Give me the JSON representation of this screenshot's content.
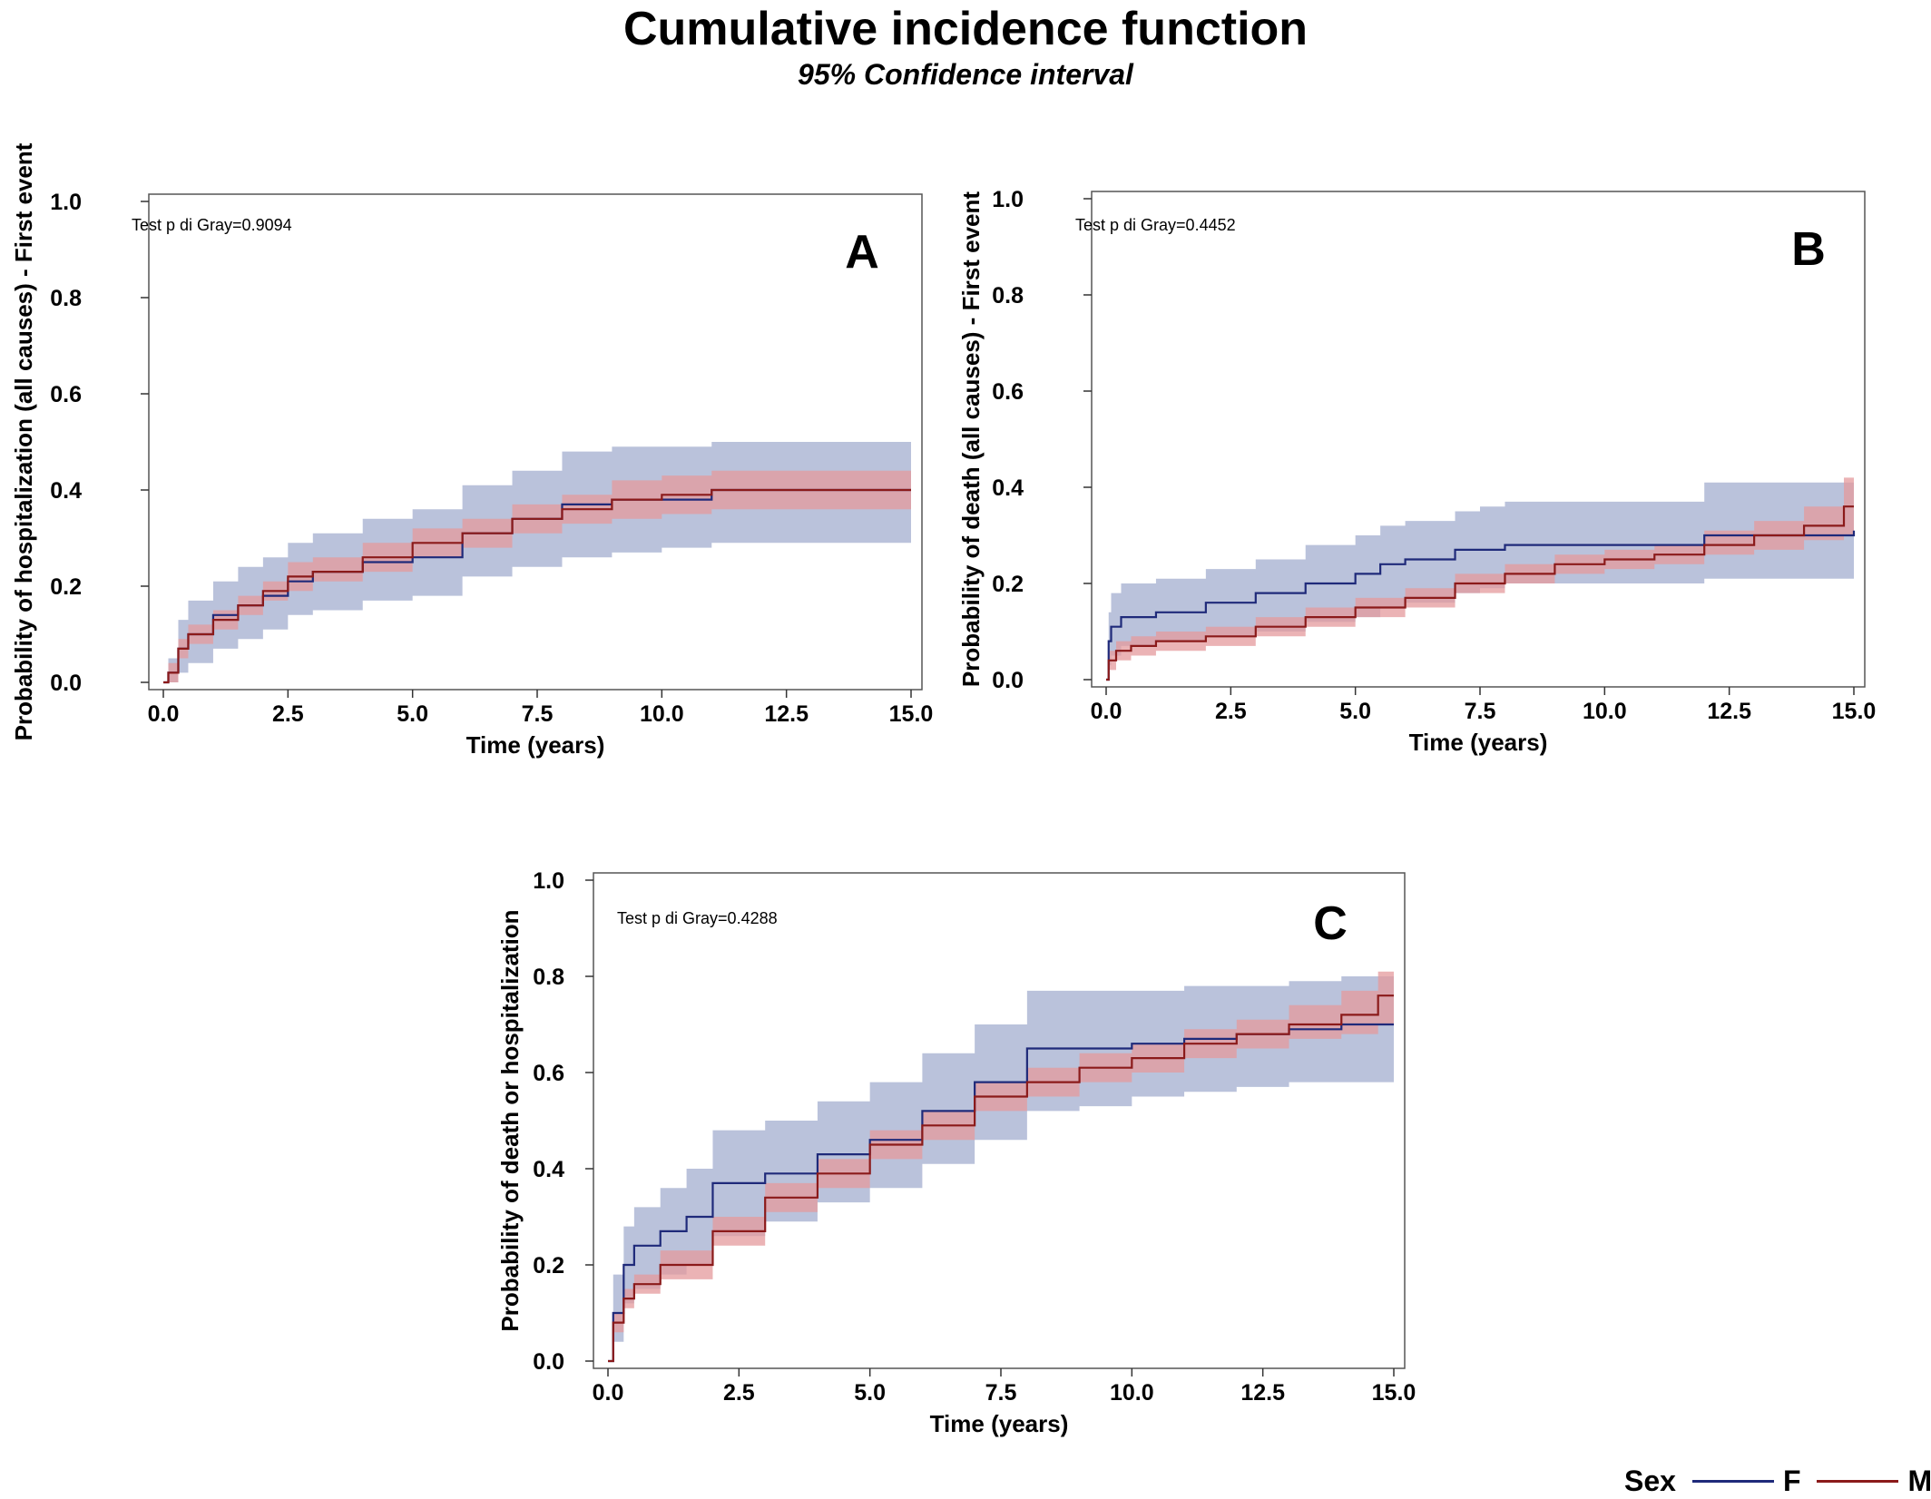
{
  "title": "Cumulative incidence function",
  "subtitle": "95% Confidence interval",
  "legend": {
    "title": "Sex",
    "items": [
      {
        "label": "F",
        "color": "#1f2a7a"
      },
      {
        "label": "M",
        "color": "#8b1a1a"
      }
    ]
  },
  "colors": {
    "F_line": "#1f2a7a",
    "M_line": "#8b1a1a",
    "F_band": "#a9b3d2",
    "M_band": "#e49a9c"
  },
  "chart_data": [
    {
      "type": "line",
      "panel_label": "A",
      "annotation": "Test p di Gray=0.9094",
      "xlabel": "Time (years)",
      "ylabel": "Probability of hospitalization (all causes) - First event",
      "xlim": [
        0,
        15
      ],
      "ylim": [
        0,
        1
      ],
      "xticks": [
        "0.0",
        "2.5",
        "5.0",
        "7.5",
        "10.0",
        "12.5",
        "15.0"
      ],
      "yticks": [
        "0.0",
        "0.2",
        "0.4",
        "0.6",
        "0.8",
        "1.0"
      ],
      "series": [
        {
          "name": "F",
          "x": [
            0.0,
            0.1,
            0.3,
            0.5,
            1.0,
            1.5,
            2.0,
            2.5,
            3.0,
            4.0,
            5.0,
            6.0,
            7.0,
            8.0,
            9.0,
            10.0,
            11.0,
            15.0
          ],
          "y": [
            0.0,
            0.02,
            0.07,
            0.1,
            0.14,
            0.16,
            0.18,
            0.21,
            0.23,
            0.25,
            0.26,
            0.31,
            0.34,
            0.37,
            0.38,
            0.38,
            0.4,
            0.4
          ],
          "lower": [
            0.0,
            0.0,
            0.02,
            0.04,
            0.07,
            0.09,
            0.11,
            0.14,
            0.15,
            0.17,
            0.18,
            0.22,
            0.24,
            0.26,
            0.27,
            0.28,
            0.29,
            0.29
          ],
          "upper": [
            0.0,
            0.05,
            0.13,
            0.17,
            0.21,
            0.24,
            0.26,
            0.29,
            0.31,
            0.34,
            0.36,
            0.41,
            0.44,
            0.48,
            0.49,
            0.49,
            0.5,
            0.5
          ]
        },
        {
          "name": "M",
          "x": [
            0.0,
            0.1,
            0.3,
            0.5,
            1.0,
            1.5,
            2.0,
            2.5,
            3.0,
            4.0,
            5.0,
            6.0,
            7.0,
            8.0,
            9.0,
            10.0,
            11.0,
            15.0
          ],
          "y": [
            0.0,
            0.02,
            0.07,
            0.1,
            0.13,
            0.16,
            0.19,
            0.22,
            0.23,
            0.26,
            0.29,
            0.31,
            0.34,
            0.36,
            0.38,
            0.39,
            0.4,
            0.4
          ],
          "lower": [
            0.0,
            0.0,
            0.05,
            0.08,
            0.11,
            0.14,
            0.17,
            0.19,
            0.21,
            0.23,
            0.26,
            0.28,
            0.31,
            0.33,
            0.34,
            0.35,
            0.36,
            0.36
          ],
          "upper": [
            0.0,
            0.04,
            0.09,
            0.12,
            0.15,
            0.18,
            0.21,
            0.25,
            0.26,
            0.29,
            0.32,
            0.34,
            0.37,
            0.39,
            0.42,
            0.43,
            0.44,
            0.44
          ]
        }
      ]
    },
    {
      "type": "line",
      "panel_label": "B",
      "annotation": "Test p di Gray=0.4452",
      "xlabel": "Time (years)",
      "ylabel": "Probability of death (all causes) - First event",
      "xlim": [
        0,
        15
      ],
      "ylim": [
        0,
        1
      ],
      "xticks": [
        "0.0",
        "2.5",
        "5.0",
        "7.5",
        "10.0",
        "12.5",
        "15.0"
      ],
      "yticks": [
        "0.0",
        "0.2",
        "0.4",
        "0.6",
        "0.8",
        "1.0"
      ],
      "series": [
        {
          "name": "F",
          "x": [
            0.0,
            0.05,
            0.1,
            0.3,
            0.5,
            1.0,
            2.0,
            3.0,
            4.0,
            5.0,
            5.5,
            6.0,
            7.0,
            7.5,
            8.0,
            10.0,
            12.0,
            15.0
          ],
          "y": [
            0.0,
            0.08,
            0.11,
            0.13,
            0.13,
            0.14,
            0.16,
            0.18,
            0.2,
            0.22,
            0.24,
            0.25,
            0.27,
            0.27,
            0.28,
            0.28,
            0.3,
            0.31
          ],
          "lower": [
            0.0,
            0.03,
            0.05,
            0.07,
            0.07,
            0.08,
            0.09,
            0.1,
            0.12,
            0.13,
            0.15,
            0.16,
            0.18,
            0.19,
            0.2,
            0.2,
            0.21,
            0.21
          ],
          "upper": [
            0.0,
            0.14,
            0.18,
            0.2,
            0.2,
            0.21,
            0.23,
            0.25,
            0.28,
            0.3,
            0.32,
            0.33,
            0.35,
            0.36,
            0.37,
            0.37,
            0.41,
            0.41
          ]
        },
        {
          "name": "M",
          "x": [
            0.0,
            0.05,
            0.2,
            0.5,
            1.0,
            2.0,
            3.0,
            4.0,
            5.0,
            6.0,
            7.0,
            8.0,
            9.0,
            10.0,
            11.0,
            12.0,
            13.0,
            14.0,
            14.8,
            15.0
          ],
          "y": [
            0.0,
            0.04,
            0.06,
            0.07,
            0.08,
            0.09,
            0.11,
            0.13,
            0.15,
            0.17,
            0.2,
            0.22,
            0.24,
            0.25,
            0.26,
            0.28,
            0.3,
            0.32,
            0.36,
            0.36
          ],
          "lower": [
            0.0,
            0.02,
            0.04,
            0.05,
            0.06,
            0.07,
            0.09,
            0.11,
            0.13,
            0.15,
            0.18,
            0.2,
            0.22,
            0.23,
            0.24,
            0.26,
            0.27,
            0.29,
            0.3,
            0.3
          ],
          "upper": [
            0.0,
            0.06,
            0.08,
            0.09,
            0.1,
            0.11,
            0.13,
            0.15,
            0.17,
            0.19,
            0.22,
            0.24,
            0.26,
            0.27,
            0.28,
            0.31,
            0.33,
            0.36,
            0.42,
            0.42
          ]
        }
      ]
    },
    {
      "type": "line",
      "panel_label": "C",
      "annotation": "Test p di Gray=0.4288",
      "xlabel": "Time (years)",
      "ylabel": "Probability of death or hospitalization",
      "xlim": [
        0,
        15
      ],
      "ylim": [
        0,
        1
      ],
      "xticks": [
        "0.0",
        "2.5",
        "5.0",
        "7.5",
        "10.0",
        "12.5",
        "15.0"
      ],
      "yticks": [
        "0.0",
        "0.2",
        "0.4",
        "0.6",
        "0.8",
        "1.0"
      ],
      "series": [
        {
          "name": "F",
          "x": [
            0.0,
            0.1,
            0.3,
            0.5,
            1.0,
            1.5,
            2.0,
            3.0,
            4.0,
            5.0,
            6.0,
            7.0,
            8.0,
            9.0,
            10.0,
            11.0,
            12.0,
            13.0,
            14.0,
            15.0
          ],
          "y": [
            0.0,
            0.1,
            0.2,
            0.24,
            0.27,
            0.3,
            0.37,
            0.39,
            0.43,
            0.46,
            0.52,
            0.58,
            0.65,
            0.65,
            0.66,
            0.67,
            0.68,
            0.69,
            0.7,
            0.7
          ],
          "lower": [
            0.0,
            0.04,
            0.12,
            0.15,
            0.18,
            0.2,
            0.26,
            0.29,
            0.33,
            0.36,
            0.41,
            0.46,
            0.52,
            0.53,
            0.55,
            0.56,
            0.57,
            0.58,
            0.58,
            0.58
          ],
          "upper": [
            0.0,
            0.18,
            0.28,
            0.32,
            0.36,
            0.4,
            0.48,
            0.5,
            0.54,
            0.58,
            0.64,
            0.7,
            0.77,
            0.77,
            0.77,
            0.78,
            0.78,
            0.79,
            0.8,
            0.8
          ]
        },
        {
          "name": "M",
          "x": [
            0.0,
            0.1,
            0.3,
            0.5,
            1.0,
            2.0,
            3.0,
            4.0,
            5.0,
            6.0,
            7.0,
            8.0,
            9.0,
            10.0,
            11.0,
            12.0,
            13.0,
            14.0,
            14.7,
            15.0
          ],
          "y": [
            0.0,
            0.08,
            0.13,
            0.16,
            0.2,
            0.27,
            0.34,
            0.39,
            0.45,
            0.49,
            0.55,
            0.58,
            0.61,
            0.63,
            0.66,
            0.68,
            0.7,
            0.72,
            0.76,
            0.76
          ],
          "lower": [
            0.0,
            0.06,
            0.11,
            0.14,
            0.17,
            0.24,
            0.31,
            0.36,
            0.42,
            0.46,
            0.52,
            0.55,
            0.58,
            0.6,
            0.63,
            0.65,
            0.67,
            0.68,
            0.7,
            0.7
          ],
          "upper": [
            0.0,
            0.1,
            0.15,
            0.18,
            0.23,
            0.3,
            0.37,
            0.42,
            0.48,
            0.52,
            0.58,
            0.61,
            0.64,
            0.66,
            0.69,
            0.71,
            0.74,
            0.77,
            0.81,
            0.81
          ]
        }
      ]
    }
  ]
}
